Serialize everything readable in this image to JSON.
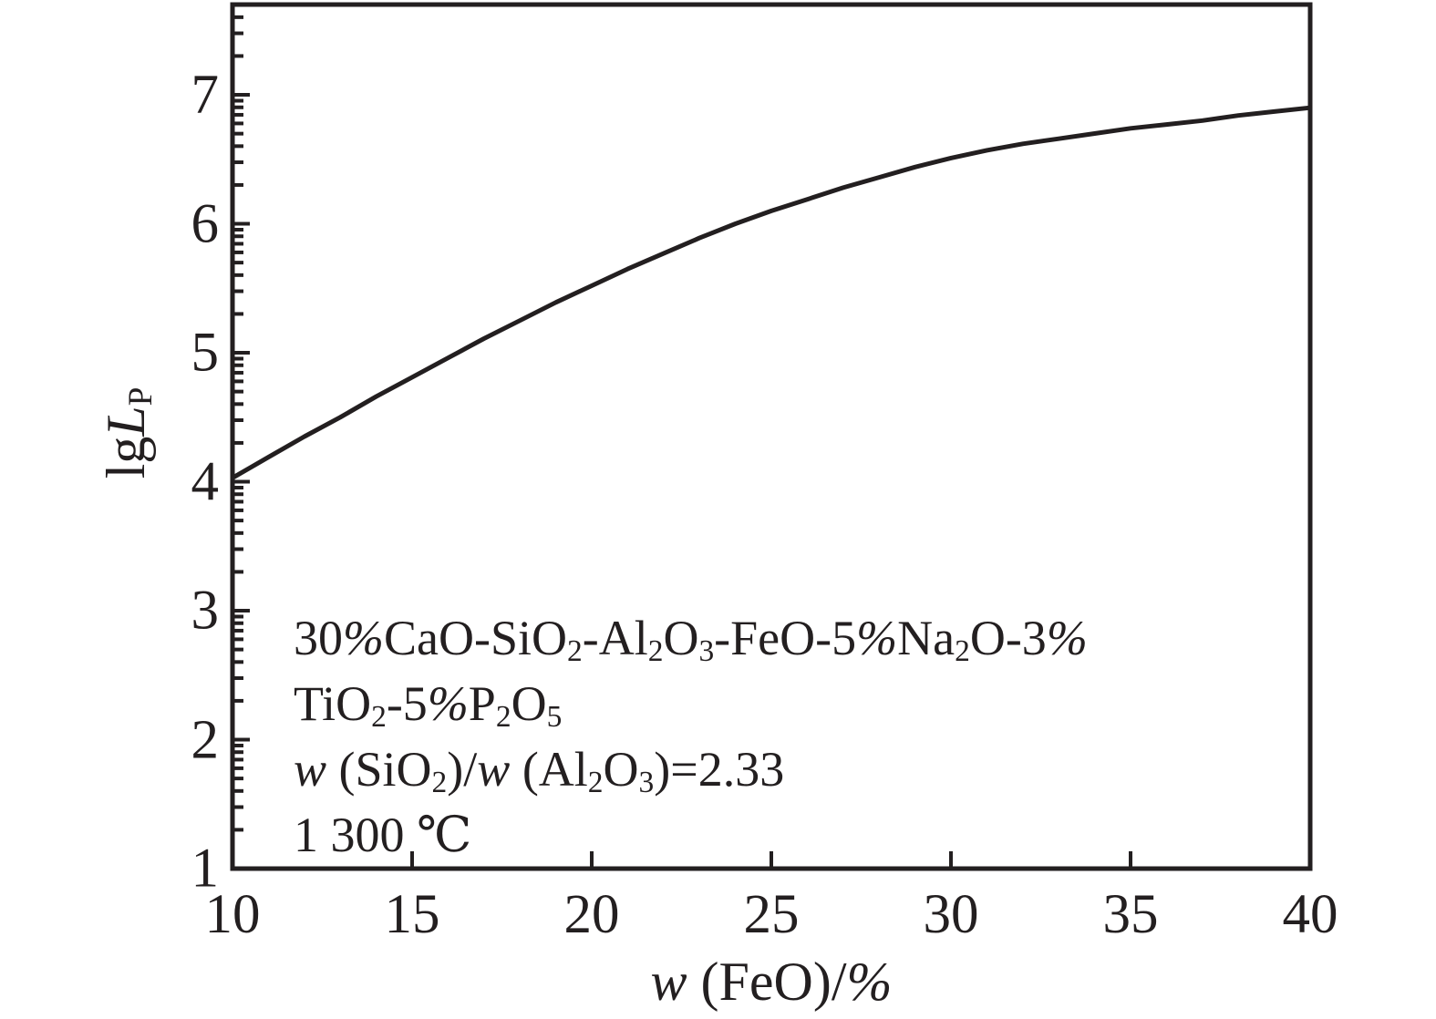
{
  "canvas": {
    "background": "#ffffff",
    "ink": "#231f20"
  },
  "chart_data": {
    "type": "line",
    "title": "",
    "xlabel": "w (FeO)/%",
    "ylabel": "lg L_P",
    "xlabel_segments": [
      {
        "t": "w",
        "st": "i"
      },
      {
        "t": " (FeO)/",
        "st": "n"
      },
      {
        "t": "%",
        "st": "i"
      }
    ],
    "ylabel_segments": [
      {
        "t": "lg",
        "st": "n"
      },
      {
        "t": "L",
        "st": "i"
      },
      {
        "t": "P",
        "st": "s"
      }
    ],
    "xlim": [
      10,
      40
    ],
    "ylim": [
      1,
      7.7
    ],
    "x_ticks": [
      10,
      15,
      20,
      25,
      30,
      35,
      40
    ],
    "x_tick_labels": [
      "10",
      "15",
      "20",
      "25",
      "30",
      "35",
      "40"
    ],
    "y_ticks": [
      1,
      2,
      3,
      4,
      5,
      6,
      7
    ],
    "y_tick_labels": [
      "1",
      "2",
      "3",
      "4",
      "5",
      "6",
      "7"
    ],
    "y_minor_tick_style": "logarithmic (2-9 within each decade)",
    "grid": false,
    "legend": false,
    "line_color": "#231f20",
    "series": [
      {
        "name": "lg LP vs w(FeO)",
        "x": [
          10,
          11,
          12,
          13,
          14,
          15,
          16,
          17,
          18,
          19,
          20,
          21,
          22,
          23,
          24,
          25,
          26,
          27,
          28,
          29,
          30,
          31,
          32,
          33,
          34,
          35,
          36,
          37,
          38,
          39,
          40
        ],
        "y": [
          4.03,
          4.19,
          4.35,
          4.5,
          4.66,
          4.81,
          4.96,
          5.11,
          5.25,
          5.39,
          5.52,
          5.65,
          5.77,
          5.89,
          6.0,
          6.1,
          6.19,
          6.28,
          6.36,
          6.44,
          6.51,
          6.57,
          6.62,
          6.66,
          6.7,
          6.74,
          6.77,
          6.8,
          6.84,
          6.87,
          6.9
        ]
      }
    ],
    "annotation": {
      "plain_lines": [
        "30%CaO-SiO2-Al2O3-FeO-5%Na2O-3%",
        "TiO2-5%P2O5",
        "w (SiO2)/w (Al2O3)=2.33",
        "1 300 ℃"
      ],
      "lines": [
        [
          {
            "t": "30",
            "st": "n"
          },
          {
            "t": "%",
            "st": "i"
          },
          {
            "t": "CaO-SiO",
            "st": "n"
          },
          {
            "t": "2",
            "st": "s"
          },
          {
            "t": "-Al",
            "st": "n"
          },
          {
            "t": "2",
            "st": "s"
          },
          {
            "t": "O",
            "st": "n"
          },
          {
            "t": "3",
            "st": "s"
          },
          {
            "t": "-FeO-5",
            "st": "n"
          },
          {
            "t": "%",
            "st": "i"
          },
          {
            "t": "Na",
            "st": "n"
          },
          {
            "t": "2",
            "st": "s"
          },
          {
            "t": "O-3",
            "st": "n"
          },
          {
            "t": "%",
            "st": "i"
          }
        ],
        [
          {
            "t": "TiO",
            "st": "n"
          },
          {
            "t": "2",
            "st": "s"
          },
          {
            "t": "-5",
            "st": "n"
          },
          {
            "t": "%",
            "st": "i"
          },
          {
            "t": "P",
            "st": "n"
          },
          {
            "t": "2",
            "st": "s"
          },
          {
            "t": "O",
            "st": "n"
          },
          {
            "t": "5",
            "st": "s"
          }
        ],
        [
          {
            "t": "w",
            "st": "i"
          },
          {
            "t": " (SiO",
            "st": "n"
          },
          {
            "t": "2",
            "st": "s"
          },
          {
            "t": ")/",
            "st": "n"
          },
          {
            "t": "w",
            "st": "i"
          },
          {
            "t": " (Al",
            "st": "n"
          },
          {
            "t": "2",
            "st": "s"
          },
          {
            "t": "O",
            "st": "n"
          },
          {
            "t": "3",
            "st": "s"
          },
          {
            "t": ")=2.33",
            "st": "n"
          }
        ],
        [
          {
            "t": "1 300 ℃",
            "st": "n"
          }
        ]
      ]
    }
  }
}
